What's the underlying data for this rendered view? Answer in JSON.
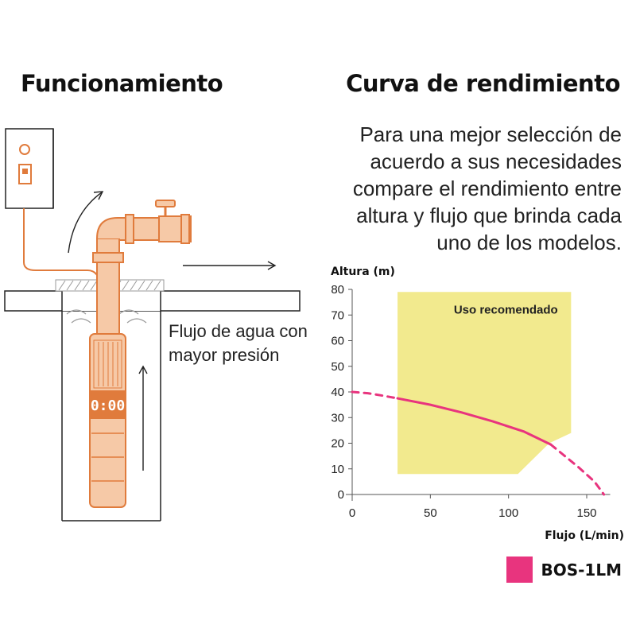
{
  "left_title": "Funcionamiento",
  "right_title": "Curva de rendimiento",
  "description_lines": [
    "Para una mejor selección de",
    "acuerdo a sus necesidades",
    "compare el rendimiento entre",
    "altura y flujo que brinda cada",
    "uno de los modelos."
  ],
  "flow_text_lines": [
    "Flujo de agua con",
    "mayor presión"
  ],
  "pump_display": "0:00",
  "colors": {
    "pump": "#e07b3c",
    "pump_light": "#f6c9a7",
    "curve": "#e8347e",
    "region": "#f2ea8e",
    "outline": "#222222"
  },
  "chart_data": {
    "type": "line",
    "xlabel": "Flujo (L/min)",
    "ylabel": "Altura (m)",
    "xlim": [
      0,
      165
    ],
    "ylim": [
      0,
      80
    ],
    "xticks": [
      0,
      50,
      100,
      150
    ],
    "yticks": [
      0,
      10,
      20,
      30,
      40,
      50,
      60,
      70,
      80
    ],
    "grid": false,
    "recommended_region": {
      "label": "Uso recomendado",
      "polygon": [
        [
          29,
          8
        ],
        [
          29,
          79
        ],
        [
          140,
          79
        ],
        [
          140,
          24
        ],
        [
          126,
          20
        ],
        [
          106,
          8
        ]
      ]
    },
    "series": [
      {
        "name": "BOS-1LM",
        "color": "#e8347e",
        "solid": {
          "x": [
            29,
            50,
            70,
            90,
            110,
            127
          ],
          "y": [
            37.5,
            35,
            32,
            28.5,
            24.5,
            19.5
          ]
        },
        "dashed_start": {
          "x": [
            0,
            10,
            20,
            29
          ],
          "y": [
            40,
            39.5,
            38.5,
            37.5
          ]
        },
        "dashed_end": {
          "x": [
            127,
            135,
            145,
            155,
            161
          ],
          "y": [
            19.5,
            15.5,
            10.5,
            5,
            0
          ]
        }
      }
    ],
    "legend_position": "bottom-right"
  }
}
